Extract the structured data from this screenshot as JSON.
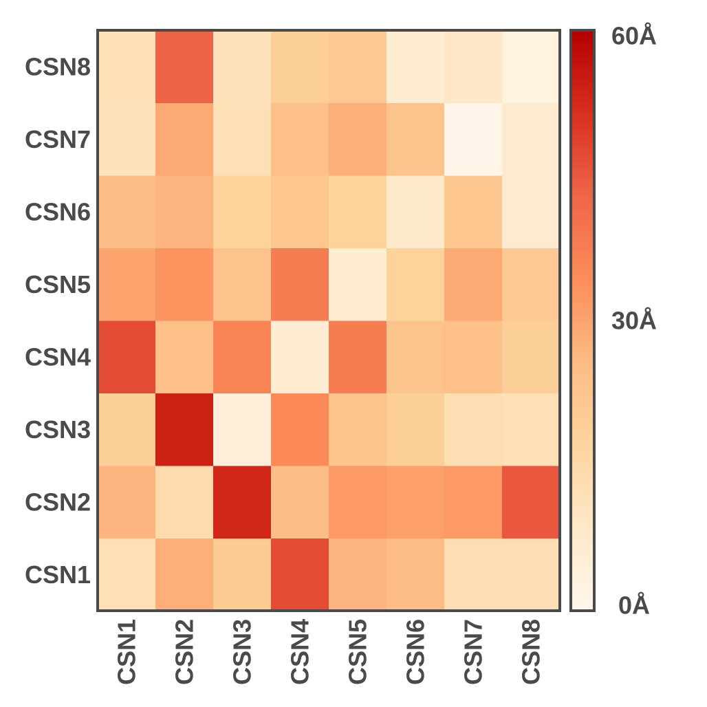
{
  "chart_data": {
    "type": "heatmap",
    "title": "",
    "x_categories": [
      "CSN1",
      "CSN2",
      "CSN3",
      "CSN4",
      "CSN5",
      "CSN6",
      "CSN7",
      "CSN8"
    ],
    "y_categories": [
      "CSN1",
      "CSN2",
      "CSN3",
      "CSN4",
      "CSN5",
      "CSN6",
      "CSN7",
      "CSN8"
    ],
    "values": [
      [
        12,
        28,
        20,
        47,
        27,
        25,
        13,
        13
      ],
      [
        27,
        14,
        53,
        25,
        32,
        31,
        32,
        45
      ],
      [
        19,
        54,
        5,
        35,
        23,
        19,
        13,
        12
      ],
      [
        47,
        24,
        36,
        6,
        38,
        23,
        24,
        19
      ],
      [
        30,
        33,
        23,
        38,
        6,
        18,
        29,
        21
      ],
      [
        25,
        27,
        18,
        22,
        18,
        8,
        22,
        7
      ],
      [
        11,
        29,
        12,
        24,
        28,
        23,
        1,
        7
      ],
      [
        12,
        43,
        11,
        19,
        21,
        6,
        9,
        3
      ]
    ],
    "value_range": [
      0,
      60
    ],
    "colorbar": {
      "ticks": [
        "0Å",
        "30Å",
        "60Å"
      ],
      "tick_values": [
        0,
        30,
        60
      ],
      "colors": [
        "#fff7ec",
        "#fee8c8",
        "#fdd49e",
        "#fdbb84",
        "#fc8d59",
        "#ef6548",
        "#d7301f",
        "#b30000"
      ]
    },
    "grid": false
  }
}
